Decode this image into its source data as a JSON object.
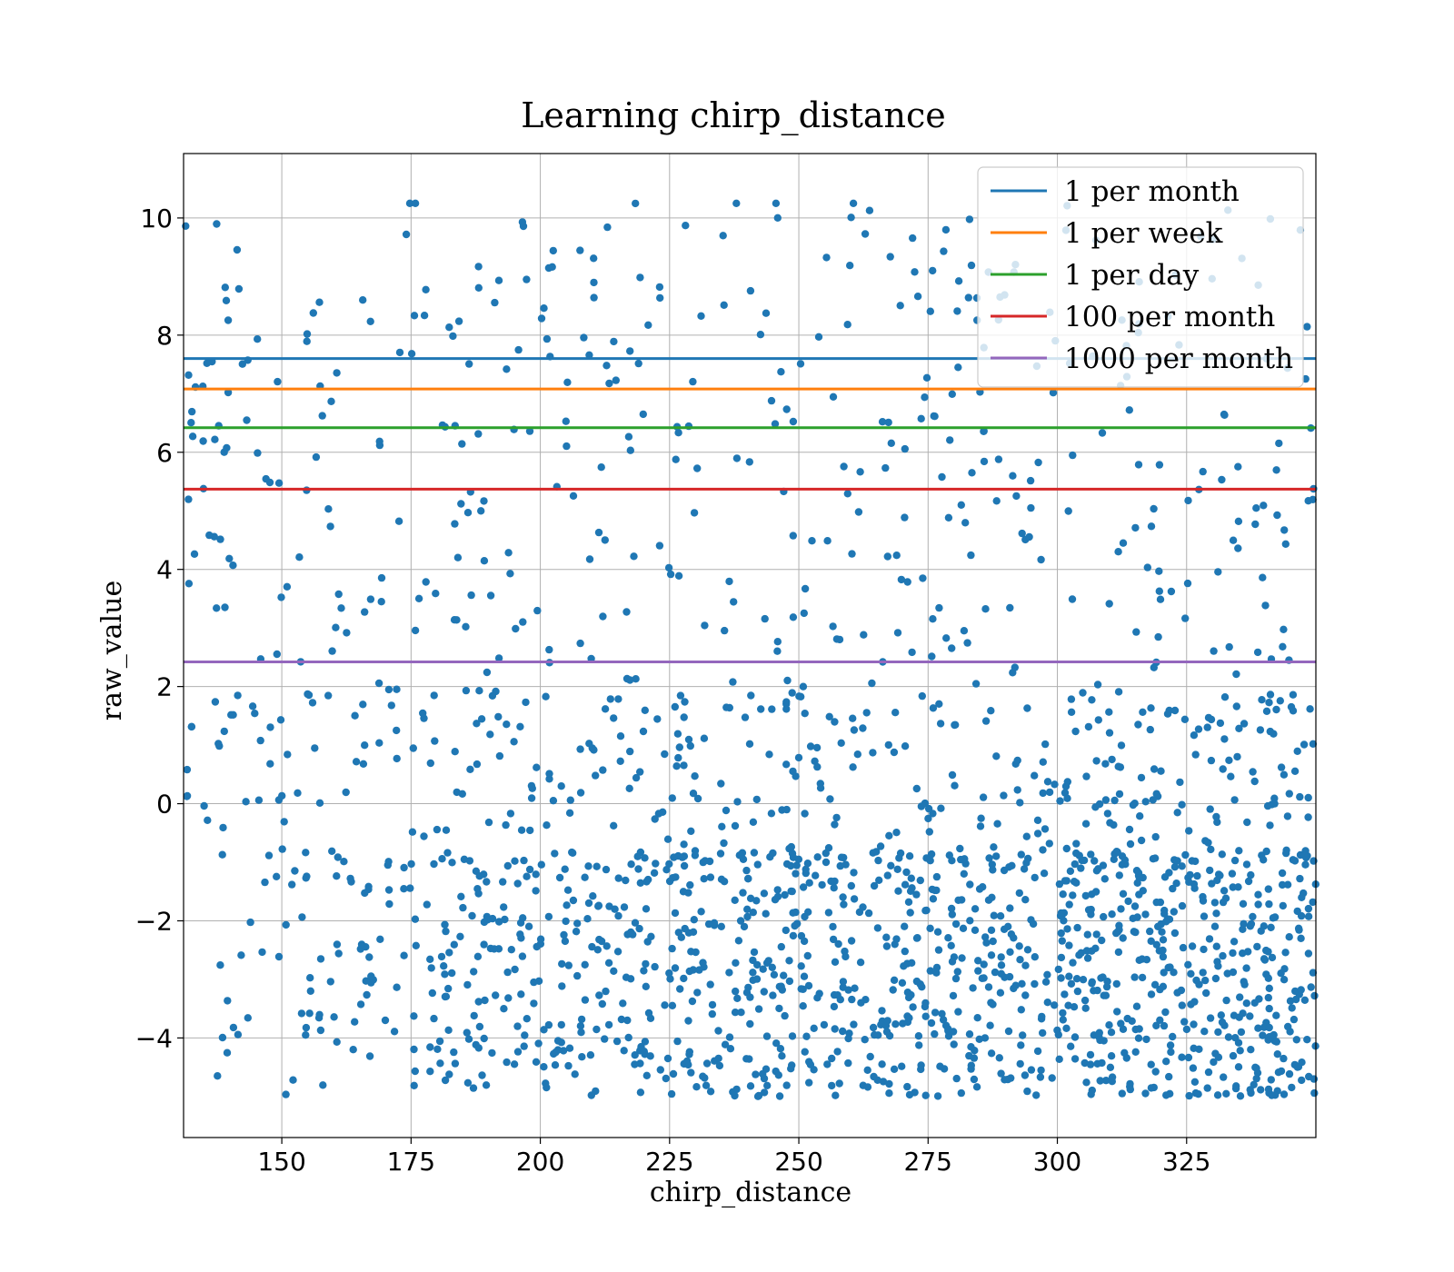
{
  "chart_data": {
    "type": "scatter",
    "title": "Learning chirp_distance",
    "xlabel": "chirp_distance",
    "ylabel": "raw_value",
    "xlim": [
      131,
      350
    ],
    "ylim": [
      -5.7,
      11.1
    ],
    "xticks": [
      150,
      175,
      200,
      225,
      250,
      275,
      300,
      325
    ],
    "xtick_labels": [
      "150",
      "175",
      "200",
      "225",
      "250",
      "275",
      "300",
      "325"
    ],
    "yticks": [
      -4,
      -2,
      0,
      2,
      4,
      6,
      8,
      10
    ],
    "ytick_labels": [
      "−4",
      "−2",
      "0",
      "2",
      "4",
      "6",
      "8",
      "10"
    ],
    "grid": true,
    "legend_position": "upper-right",
    "scatter_color": "#1f77b4",
    "scatter_point_count": 2000,
    "scatter_description": "dense cloud concentrated between -5 and -1, increasing density toward larger chirp_distance; sparse points between -1 and 10.3",
    "reference_lines": [
      {
        "name": "1 per month",
        "y": 7.6,
        "color": "#1f77b4"
      },
      {
        "name": "1 per week",
        "y": 7.08,
        "color": "#ff7f0e"
      },
      {
        "name": "1 per day",
        "y": 6.42,
        "color": "#2ca02c"
      },
      {
        "name": "100 per month",
        "y": 5.37,
        "color": "#d62728"
      },
      {
        "name": "1000 per month",
        "y": 2.42,
        "color": "#9467bd"
      }
    ]
  }
}
